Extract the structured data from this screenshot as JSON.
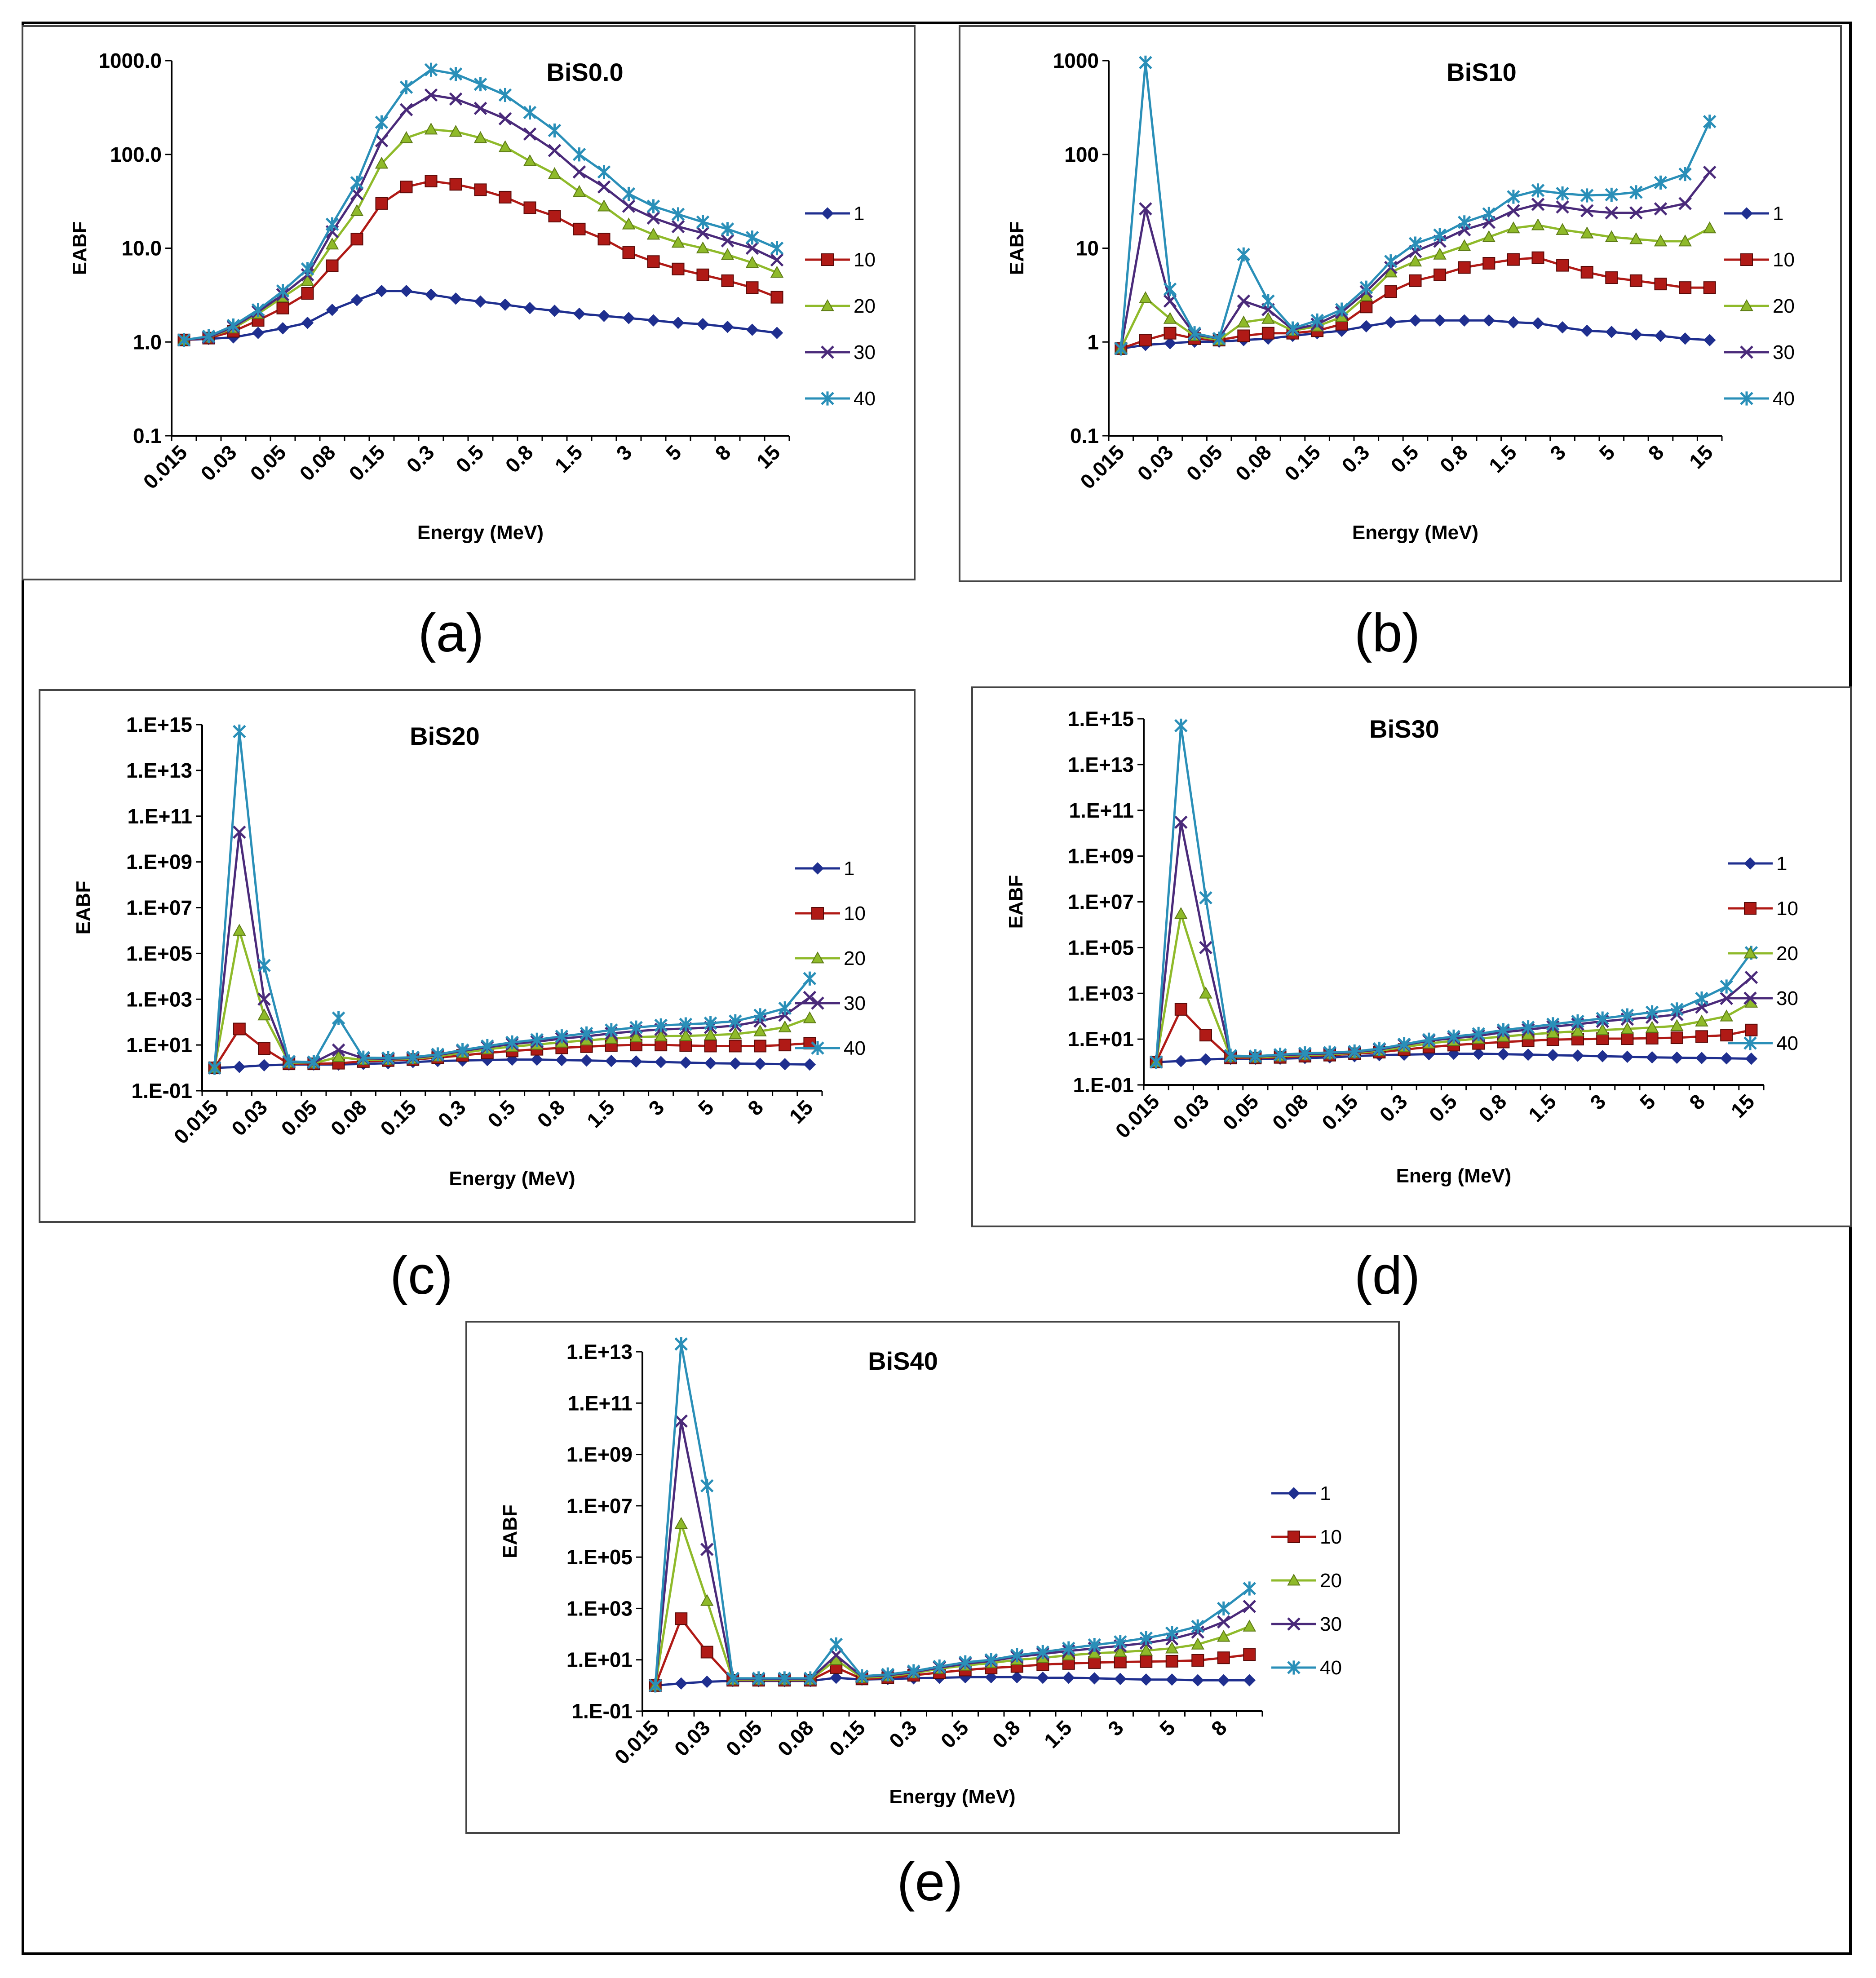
{
  "series_style": [
    {
      "name": "1",
      "color": "#1f2f8f",
      "marker": "diamond"
    },
    {
      "name": "10",
      "color": "#b01a16",
      "marker": "square"
    },
    {
      "name": "20",
      "color": "#8fba2a",
      "marker": "triangle"
    },
    {
      "name": "30",
      "color": "#4a2a7a",
      "marker": "x"
    },
    {
      "name": "40",
      "color": "#2a8fb8",
      "marker": "star"
    }
  ],
  "captions": {
    "a": "(a)",
    "b": "(b)",
    "c": "(c)",
    "d": "(d)",
    "e": "(e)"
  },
  "chart_data": [
    {
      "type": "line",
      "title": "BiS0.0",
      "xlabel": "Energy (MeV)",
      "ylabel": "EABF",
      "y_scale": "log",
      "ylim": [
        0.1,
        1000
      ],
      "yticks": [
        "0.1",
        "1.0",
        "10.0",
        "100.0",
        "1000.0"
      ],
      "x": [
        0.015,
        0.02,
        0.03,
        0.04,
        0.05,
        0.06,
        0.08,
        0.1,
        0.15,
        0.2,
        0.3,
        0.4,
        0.5,
        0.6,
        0.8,
        1,
        1.5,
        2,
        3,
        4,
        5,
        6,
        8,
        10,
        15
      ],
      "xtick_labels": [
        "0.015",
        "0.03",
        "0.05",
        "0.08",
        "0.15",
        "0.3",
        "0.5",
        "0.8",
        "1.5",
        "3",
        "5",
        "8",
        "15"
      ],
      "legend": "right",
      "series": [
        {
          "name": "1",
          "values": [
            1.05,
            1.08,
            1.12,
            1.25,
            1.4,
            1.6,
            2.2,
            2.8,
            3.5,
            3.5,
            3.2,
            2.9,
            2.7,
            2.5,
            2.3,
            2.15,
            2.0,
            1.9,
            1.8,
            1.7,
            1.6,
            1.55,
            1.45,
            1.35,
            1.25
          ]
        },
        {
          "name": "10",
          "values": [
            1.05,
            1.1,
            1.3,
            1.7,
            2.3,
            3.3,
            6.5,
            12.5,
            30,
            45,
            52,
            48,
            42,
            35,
            27,
            22,
            16,
            12.5,
            9,
            7.2,
            6,
            5.2,
            4.5,
            3.8,
            3.0
          ]
        },
        {
          "name": "20",
          "values": [
            1.05,
            1.12,
            1.4,
            2.0,
            3.0,
            4.5,
            11,
            25,
            80,
            150,
            185,
            175,
            150,
            120,
            85,
            62,
            40,
            28,
            18,
            14,
            11.5,
            10,
            8.5,
            7,
            5.5
          ]
        },
        {
          "name": "30",
          "values": [
            1.05,
            1.12,
            1.45,
            2.1,
            3.2,
            5.2,
            15,
            38,
            140,
            300,
            430,
            390,
            310,
            240,
            165,
            110,
            65,
            45,
            28,
            21,
            17,
            14.5,
            12,
            10,
            7.5
          ]
        },
        {
          "name": "40",
          "values": [
            1.05,
            1.15,
            1.5,
            2.2,
            3.5,
            6,
            18,
            50,
            220,
            520,
            800,
            720,
            560,
            430,
            280,
            180,
            100,
            65,
            38,
            28,
            23,
            19,
            16,
            13,
            10
          ]
        }
      ]
    },
    {
      "type": "line",
      "title": "BiS10",
      "xlabel": "Energy (MeV)",
      "ylabel": "EABF",
      "y_scale": "log",
      "ylim": [
        0.1,
        2000
      ],
      "yticks": [
        "0.1",
        "1",
        "10",
        "100",
        "1000"
      ],
      "x": [
        0.015,
        0.02,
        0.03,
        0.04,
        0.05,
        0.06,
        0.08,
        0.1,
        0.15,
        0.2,
        0.3,
        0.4,
        0.5,
        0.6,
        0.8,
        1,
        1.5,
        2,
        3,
        4,
        5,
        6,
        8,
        10,
        15
      ],
      "xtick_labels": [
        "0.015",
        "0.03",
        "0.05",
        "0.08",
        "0.15",
        "0.3",
        "0.5",
        "0.8",
        "1.5",
        "3",
        "5",
        "8",
        "15"
      ],
      "legend": "right",
      "series": [
        {
          "name": "1",
          "values": [
            1.0,
            1.1,
            1.15,
            1.2,
            1.2,
            1.25,
            1.3,
            1.4,
            1.5,
            1.6,
            1.8,
            2.0,
            2.1,
            2.1,
            2.1,
            2.1,
            2.0,
            1.95,
            1.75,
            1.6,
            1.55,
            1.45,
            1.4,
            1.3,
            1.25
          ]
        },
        {
          "name": "10",
          "values": [
            1.0,
            1.25,
            1.5,
            1.3,
            1.25,
            1.4,
            1.5,
            1.5,
            1.6,
            1.9,
            3.0,
            4.5,
            6,
            7,
            8.5,
            9.5,
            10.5,
            11,
            9,
            7.5,
            6.5,
            6,
            5.5,
            5,
            5
          ]
        },
        {
          "name": "20",
          "values": [
            1.0,
            3.8,
            2.2,
            1.4,
            1.25,
            2.0,
            2.2,
            1.6,
            1.8,
            2.3,
            4.0,
            7.5,
            10,
            12,
            15,
            19,
            24,
            26,
            23,
            21,
            19,
            18,
            17,
            17,
            24
          ]
        },
        {
          "name": "30",
          "values": [
            1.0,
            40,
            3.5,
            1.45,
            1.3,
            3.5,
            2.8,
            1.65,
            1.9,
            2.6,
            4.5,
            8.5,
            13,
            17,
            23,
            28,
            38,
            45,
            42,
            38,
            36,
            36,
            40,
            46,
            105
          ]
        },
        {
          "name": "40",
          "values": [
            1.0,
            1900,
            4.8,
            1.5,
            1.3,
            12,
            3.5,
            1.7,
            2.1,
            2.8,
            5.0,
            10,
            16,
            20,
            28,
            35,
            55,
            65,
            60,
            57,
            58,
            62,
            80,
            100,
            400
          ]
        }
      ]
    },
    {
      "type": "line",
      "title": "BiS20",
      "xlabel": "Energy (MeV)",
      "ylabel": "EABF",
      "y_scale": "log",
      "ylim": [
        0.1,
        1000000000000000.0
      ],
      "yticks": [
        "1.E-01",
        "1.E+01",
        "1.E+03",
        "1.E+05",
        "1.E+07",
        "1.E+09",
        "1.E+11",
        "1.E+13",
        "1.E+15"
      ],
      "x": [
        0.015,
        0.02,
        0.03,
        0.04,
        0.05,
        0.06,
        0.08,
        0.1,
        0.15,
        0.2,
        0.3,
        0.4,
        0.5,
        0.6,
        0.8,
        1,
        1.5,
        2,
        3,
        4,
        5,
        6,
        8,
        10,
        15
      ],
      "xtick_labels": [
        "0.015",
        "0.03",
        "0.05",
        "0.08",
        "0.15",
        "0.3",
        "0.5",
        "0.8",
        "1.5",
        "3",
        "5",
        "8",
        "15"
      ],
      "legend": "right",
      "series": [
        {
          "name": "1",
          "values": [
            1.0,
            1.1,
            1.3,
            1.4,
            1.4,
            1.4,
            1.5,
            1.6,
            1.8,
            2.0,
            2.1,
            2.2,
            2.3,
            2.3,
            2.2,
            2.1,
            2.0,
            1.9,
            1.8,
            1.7,
            1.6,
            1.55,
            1.5,
            1.45,
            1.4
          ]
        },
        {
          "name": "10",
          "values": [
            1.0,
            50,
            7,
            1.5,
            1.5,
            1.6,
            1.9,
            2.1,
            2.3,
            2.8,
            3.5,
            4.5,
            5.5,
            6.5,
            7.5,
            8.5,
            9.5,
            10,
            10,
            9.5,
            9,
            9,
            9,
            10,
            12
          ]
        },
        {
          "name": "20",
          "values": [
            1.0,
            1000000.0,
            200,
            1.7,
            1.6,
            3,
            2.2,
            2.3,
            2.5,
            3.2,
            4.5,
            6.5,
            8.5,
            10.5,
            13,
            16,
            19,
            22,
            24,
            25,
            27,
            30,
            40,
            60,
            150
          ]
        },
        {
          "name": "30",
          "values": [
            1.0,
            20000000000.0,
            1000,
            1.8,
            1.7,
            6,
            2.6,
            2.5,
            2.7,
            3.6,
            5.5,
            8,
            11,
            14,
            19,
            24,
            32,
            40,
            48,
            52,
            58,
            70,
            110,
            200,
            1200
          ]
        },
        {
          "name": "40",
          "values": [
            1.0,
            500000000000000.0,
            30000.0,
            1.9,
            1.8,
            150,
            2.8,
            2.7,
            2.9,
            3.9,
            6.0,
            9,
            13,
            17,
            24,
            32,
            45,
            58,
            72,
            80,
            90,
            110,
            200,
            400,
            8000
          ]
        }
      ]
    },
    {
      "type": "line",
      "title": "BiS30",
      "xlabel": "Energ (MeV)",
      "ylabel": "EABF",
      "y_scale": "log",
      "ylim": [
        0.1,
        1000000000000000.0
      ],
      "yticks": [
        "1.E-01",
        "1.E+01",
        "1.E+03",
        "1.E+05",
        "1.E+07",
        "1.E+09",
        "1.E+11",
        "1.E+13",
        "1.E+15"
      ],
      "x": [
        0.015,
        0.02,
        0.03,
        0.04,
        0.05,
        0.06,
        0.08,
        0.1,
        0.15,
        0.2,
        0.3,
        0.4,
        0.5,
        0.6,
        0.8,
        1,
        1.5,
        2,
        3,
        4,
        5,
        6,
        8,
        10,
        15
      ],
      "xtick_labels": [
        "0.015",
        "0.03",
        "0.05",
        "0.08",
        "0.15",
        "0.3",
        "0.5",
        "0.8",
        "1.5",
        "3",
        "5",
        "8",
        "15"
      ],
      "legend": "right",
      "series": [
        {
          "name": "1",
          "values": [
            1.0,
            1.1,
            1.3,
            1.4,
            1.4,
            1.4,
            1.5,
            1.6,
            1.8,
            2.0,
            2.1,
            2.2,
            2.3,
            2.3,
            2.2,
            2.1,
            2.0,
            1.9,
            1.8,
            1.7,
            1.6,
            1.55,
            1.5,
            1.45,
            1.4
          ]
        },
        {
          "name": "10",
          "values": [
            1.0,
            200,
            15,
            1.5,
            1.5,
            1.6,
            1.8,
            2.0,
            2.3,
            2.7,
            3.5,
            4.5,
            5.5,
            6.5,
            7.5,
            8.5,
            9.5,
            10,
            10.5,
            10.5,
            11,
            11.5,
            13,
            15,
            25
          ]
        },
        {
          "name": "20",
          "values": [
            1.0,
            3000000.0,
            1000,
            1.7,
            1.6,
            1.8,
            2.0,
            2.2,
            2.5,
            3.1,
            4.5,
            6.5,
            8.5,
            10.5,
            13,
            16,
            19,
            22,
            25,
            28,
            32,
            38,
            60,
            100,
            400
          ]
        },
        {
          "name": "30",
          "values": [
            1.0,
            30000000000.0,
            100000.0,
            1.8,
            1.7,
            2.0,
            2.2,
            2.4,
            2.7,
            3.5,
            5.5,
            8.5,
            11,
            14,
            20,
            26,
            35,
            45,
            60,
            75,
            90,
            120,
            250,
            600,
            5000
          ]
        },
        {
          "name": "40",
          "values": [
            1.0,
            500000000000000.0,
            15000000.0,
            1.9,
            1.8,
            2.1,
            2.4,
            2.6,
            2.9,
            3.8,
            6.0,
            9.5,
            13,
            17,
            25,
            33,
            45,
            60,
            80,
            110,
            150,
            200,
            600,
            2000,
            60000.0
          ]
        }
      ]
    },
    {
      "type": "line",
      "title": "BiS40",
      "xlabel": "Energy (MeV)",
      "ylabel": "EABF",
      "y_scale": "log",
      "ylim": [
        0.1,
        10000000000000.0
      ],
      "yticks": [
        "1.E-01",
        "1.E+01",
        "1.E+03",
        "1.E+05",
        "1.E+07",
        "1.E+09",
        "1.E+11",
        "1.E+13"
      ],
      "x": [
        0.015,
        0.02,
        0.03,
        0.04,
        0.05,
        0.06,
        0.08,
        0.1,
        0.15,
        0.2,
        0.3,
        0.4,
        0.5,
        0.6,
        0.8,
        1,
        1.5,
        2,
        3,
        4,
        5,
        6,
        8,
        10
      ],
      "xtick_labels": [
        "0.015",
        "0.03",
        "0.05",
        "0.08",
        "0.15",
        "0.3",
        "0.5",
        "0.8",
        "1.5",
        "3",
        "5",
        "8"
      ],
      "legend": "right",
      "series": [
        {
          "name": "1",
          "values": [
            1.0,
            1.2,
            1.4,
            1.5,
            1.5,
            1.5,
            1.5,
            2.0,
            1.7,
            1.8,
            1.9,
            2.0,
            2.1,
            2.1,
            2.1,
            2.0,
            2.0,
            1.9,
            1.8,
            1.7,
            1.7,
            1.6,
            1.6,
            1.6
          ]
        },
        {
          "name": "10",
          "values": [
            1.0,
            400,
            20,
            1.6,
            1.6,
            1.6,
            1.6,
            5,
            1.8,
            2.0,
            2.5,
            3.2,
            4,
            4.8,
            5.5,
            6.5,
            7.2,
            7.8,
            8.2,
            8.5,
            8.8,
            9.5,
            12,
            16
          ]
        },
        {
          "name": "20",
          "values": [
            1.0,
            2000000.0,
            2000,
            1.7,
            1.7,
            1.7,
            1.7,
            10,
            2.0,
            2.3,
            3.0,
            4.5,
            6,
            7.5,
            10,
            12,
            15,
            18,
            20,
            23,
            28,
            40,
            80,
            200
          ]
        },
        {
          "name": "30",
          "values": [
            1.0,
            20000000000.0,
            200000.0,
            1.8,
            1.8,
            1.8,
            1.8,
            15,
            2.2,
            2.5,
            3.3,
            5,
            7,
            9,
            13,
            17,
            22,
            28,
            35,
            45,
            65,
            120,
            300,
            1200
          ]
        },
        {
          "name": "40",
          "values": [
            1.0,
            20000000000000.0,
            60000000.0,
            1.9,
            1.9,
            1.9,
            1.9,
            40,
            2.3,
            2.7,
            3.6,
            5.5,
            8,
            10,
            15,
            20,
            28,
            38,
            50,
            70,
            110,
            200,
            1000,
            6000
          ]
        }
      ]
    }
  ]
}
